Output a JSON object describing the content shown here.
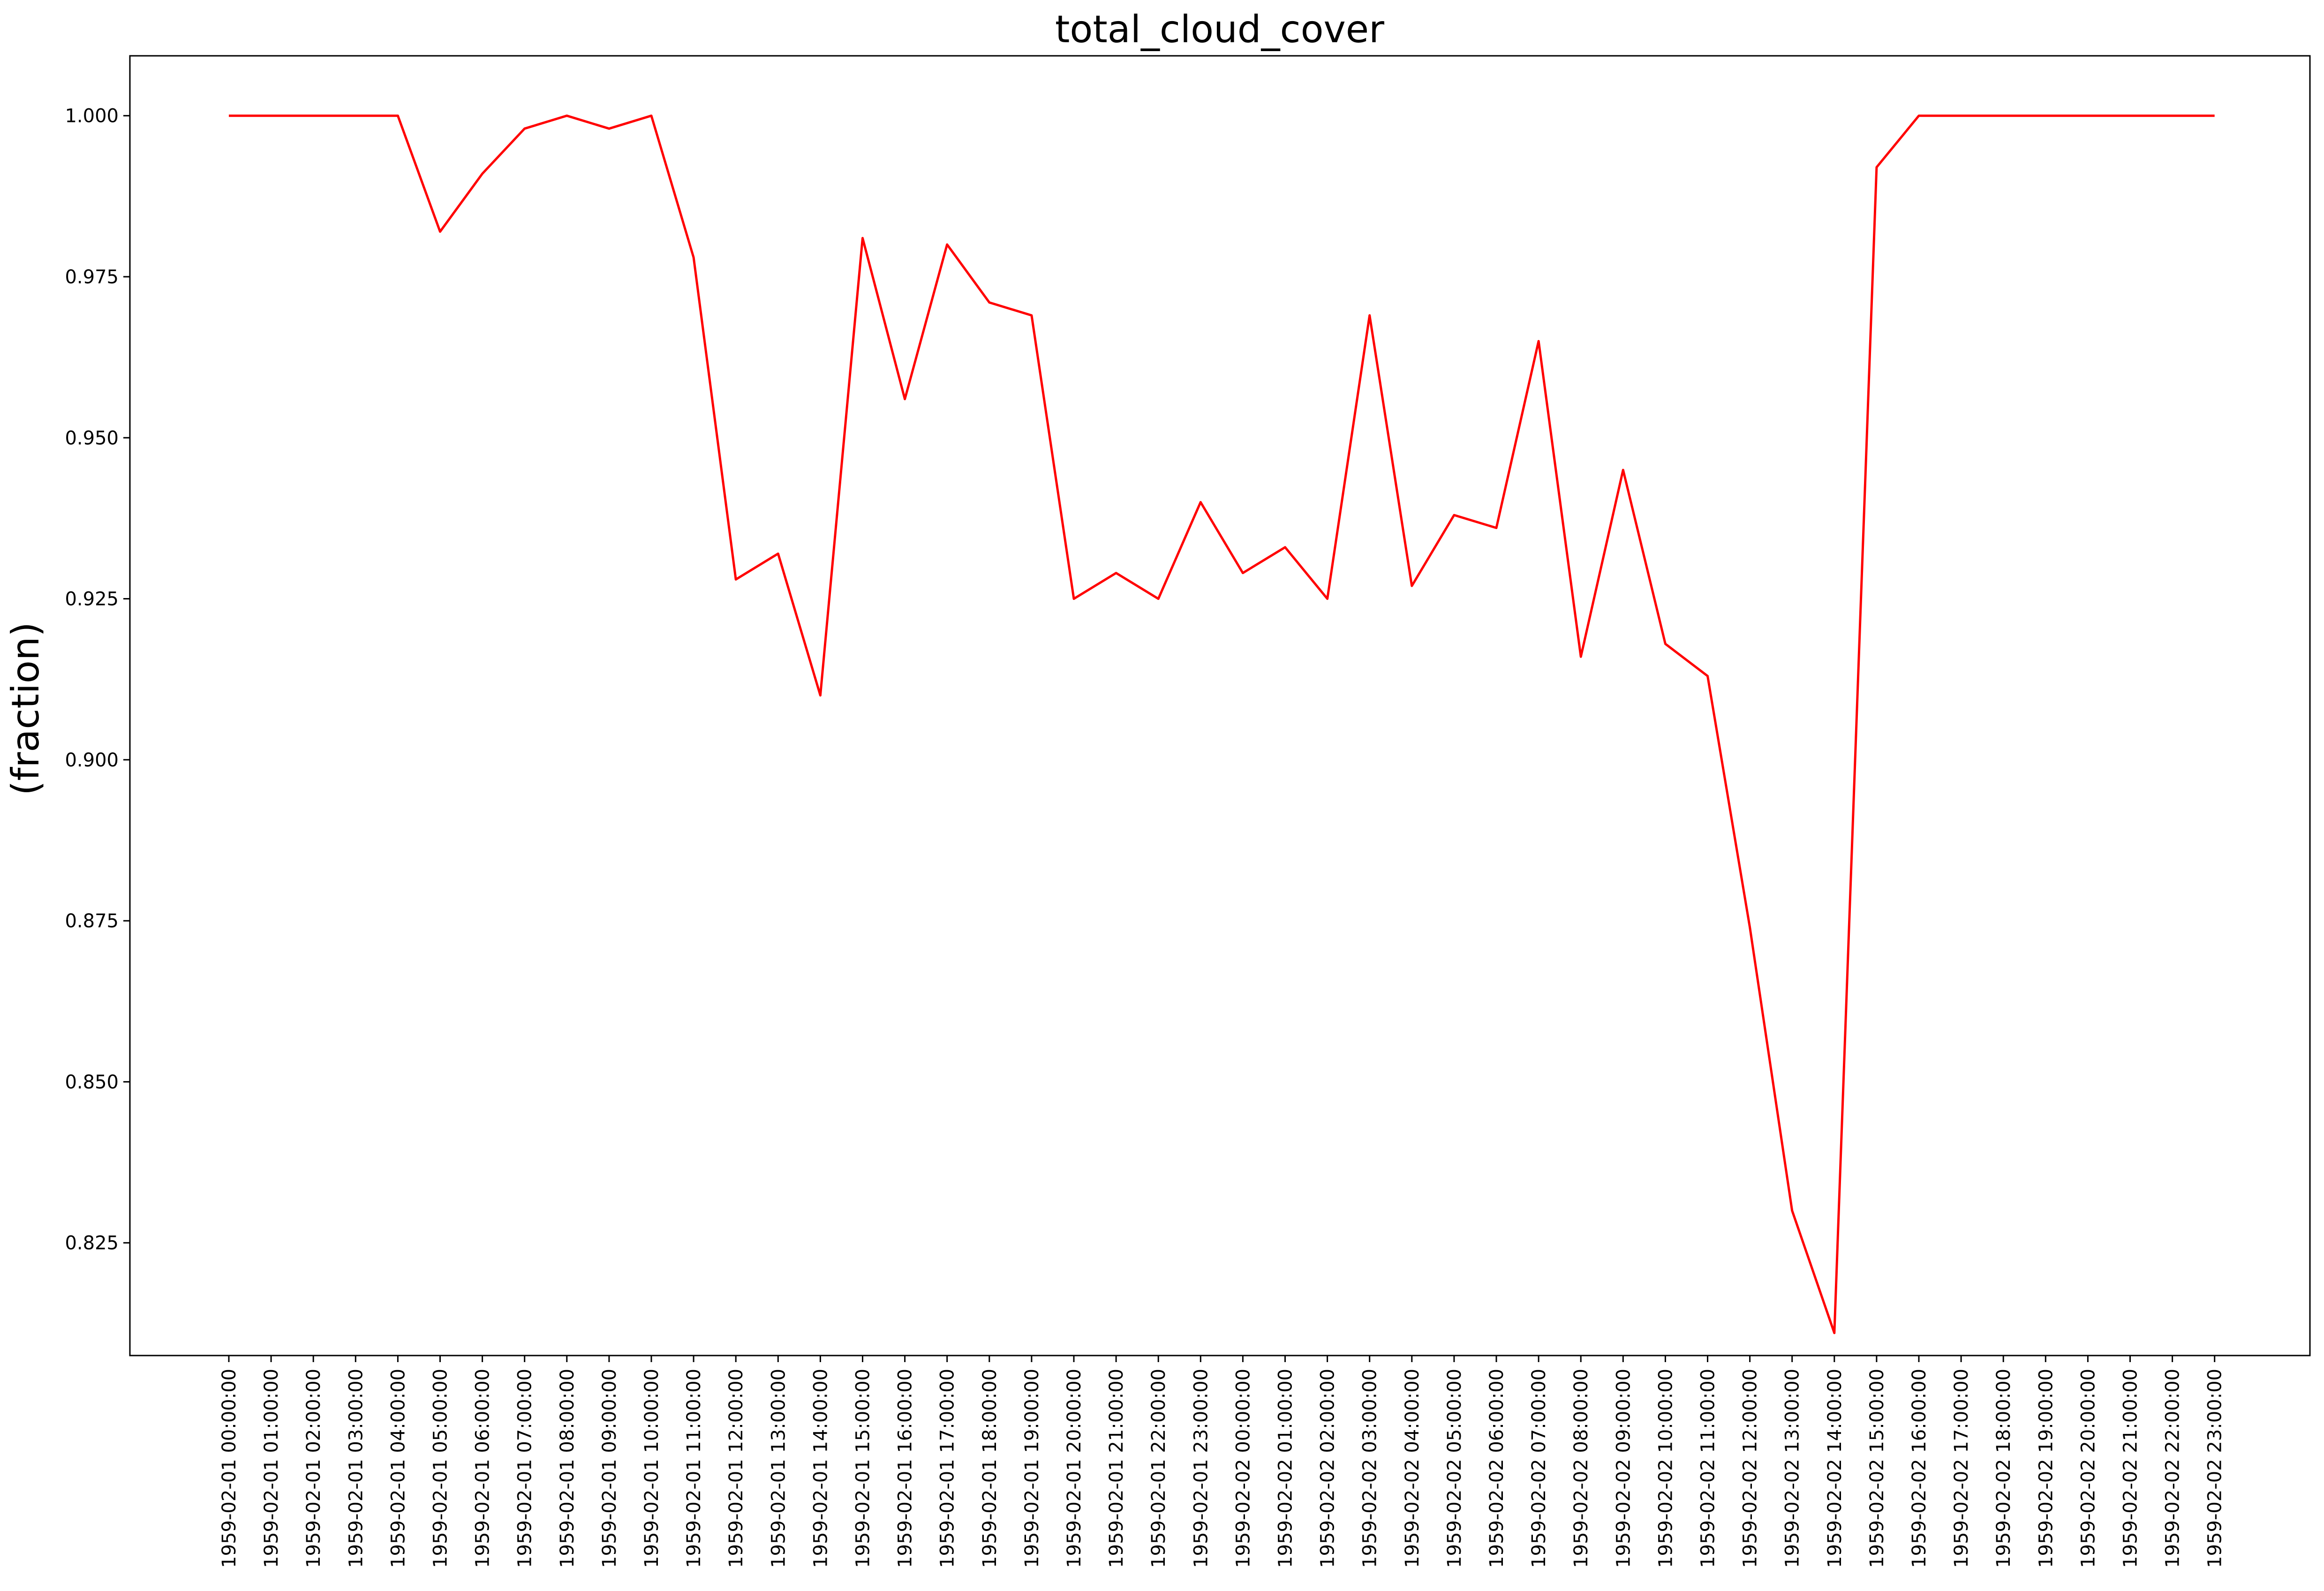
{
  "chart_data": {
    "type": "line",
    "title": "total_cloud_cover",
    "xlabel": "",
    "ylabel": "(fraction)",
    "grid": false,
    "legend": "none",
    "ylim": [
      0.8075,
      1.0093
    ],
    "yticks": [
      0.825,
      0.85,
      0.875,
      0.9,
      0.925,
      0.95,
      0.975,
      1.0
    ],
    "ytick_labels": [
      "0.825",
      "0.850",
      "0.875",
      "0.900",
      "0.925",
      "0.950",
      "0.975",
      "1.000"
    ],
    "categories": [
      "1959-02-01 00:00:00",
      "1959-02-01 01:00:00",
      "1959-02-01 02:00:00",
      "1959-02-01 03:00:00",
      "1959-02-01 04:00:00",
      "1959-02-01 05:00:00",
      "1959-02-01 06:00:00",
      "1959-02-01 07:00:00",
      "1959-02-01 08:00:00",
      "1959-02-01 09:00:00",
      "1959-02-01 10:00:00",
      "1959-02-01 11:00:00",
      "1959-02-01 12:00:00",
      "1959-02-01 13:00:00",
      "1959-02-01 14:00:00",
      "1959-02-01 15:00:00",
      "1959-02-01 16:00:00",
      "1959-02-01 17:00:00",
      "1959-02-01 18:00:00",
      "1959-02-01 19:00:00",
      "1959-02-01 20:00:00",
      "1959-02-01 21:00:00",
      "1959-02-01 22:00:00",
      "1959-02-01 23:00:00",
      "1959-02-02 00:00:00",
      "1959-02-02 01:00:00",
      "1959-02-02 02:00:00",
      "1959-02-02 03:00:00",
      "1959-02-02 04:00:00",
      "1959-02-02 05:00:00",
      "1959-02-02 06:00:00",
      "1959-02-02 07:00:00",
      "1959-02-02 08:00:00",
      "1959-02-02 09:00:00",
      "1959-02-02 10:00:00",
      "1959-02-02 11:00:00",
      "1959-02-02 12:00:00",
      "1959-02-02 13:00:00",
      "1959-02-02 14:00:00",
      "1959-02-02 15:00:00",
      "1959-02-02 16:00:00",
      "1959-02-02 17:00:00",
      "1959-02-02 18:00:00",
      "1959-02-02 19:00:00",
      "1959-02-02 20:00:00",
      "1959-02-02 21:00:00",
      "1959-02-02 22:00:00",
      "1959-02-02 23:00:00"
    ],
    "series": [
      {
        "color": "#ff0000",
        "values": [
          1.0,
          1.0,
          1.0,
          1.0,
          1.0,
          0.982,
          0.991,
          0.998,
          1.0,
          0.998,
          1.0,
          0.978,
          0.928,
          0.932,
          0.91,
          0.981,
          0.956,
          0.98,
          0.971,
          0.969,
          0.925,
          0.929,
          0.925,
          0.94,
          0.929,
          0.933,
          0.925,
          0.969,
          0.927,
          0.938,
          0.936,
          0.965,
          0.916,
          0.945,
          0.918,
          0.913,
          0.874,
          0.83,
          0.811,
          0.992,
          1.0,
          1.0,
          1.0,
          1.0,
          1.0,
          1.0,
          1.0,
          1.0
        ]
      }
    ]
  }
}
